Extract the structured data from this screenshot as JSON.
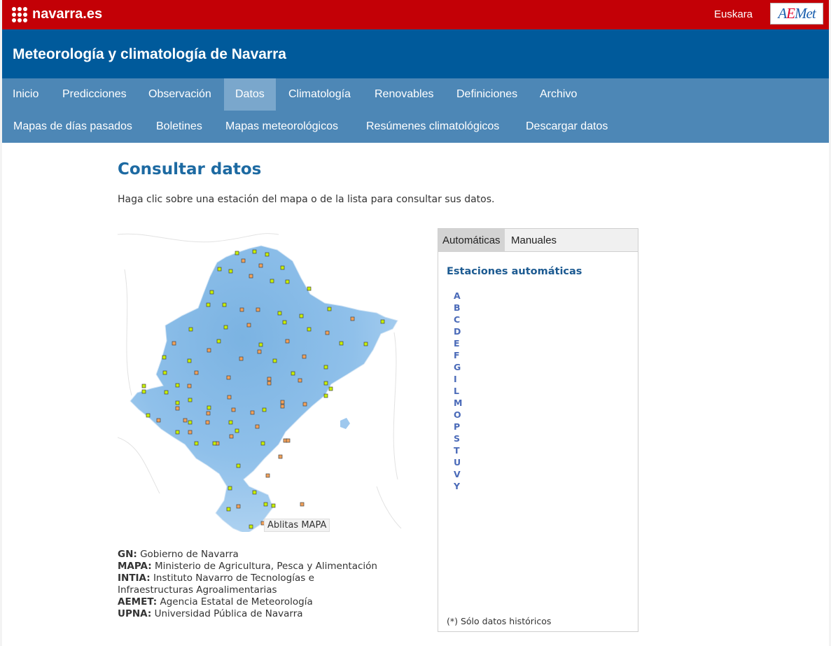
{
  "header": {
    "brand": "navarra.es",
    "language_link": "Euskara",
    "aemet_logo": "AEMet",
    "site_title": "Meteorología y climatología de Navarra"
  },
  "nav": {
    "primary": [
      "Inicio",
      "Predicciones",
      "Observación",
      "Datos",
      "Climatología",
      "Renovables",
      "Definiciones",
      "Archivo"
    ],
    "primary_active": "Datos",
    "secondary": [
      "Mapas de días pasados",
      "Boletines",
      "Mapas meteorológicos",
      "Resúmenes climatológicos",
      "Descargar datos"
    ]
  },
  "content": {
    "title": "Consultar datos",
    "intro": "Haga clic sobre una estación del mapa o de la lista para consultar sus datos.",
    "map_tooltip": "Ablitas MAPA"
  },
  "legend": [
    {
      "abbr": "GN:",
      "text": "Gobierno de Navarra"
    },
    {
      "abbr": "MAPA:",
      "text": "Ministerio de Agricultura, Pesca y Alimentación"
    },
    {
      "abbr": "INTIA:",
      "text": "Instituto Navarro de Tecnologías e Infraestructuras Agroalimentarias"
    },
    {
      "abbr": "AEMET:",
      "text": "Agencia Estatal de Meteorología"
    },
    {
      "abbr": "UPNA:",
      "text": "Universidad Pública de Navarra"
    }
  ],
  "panel": {
    "tabs": [
      "Automáticas",
      "Manuales"
    ],
    "active_tab": "Automáticas",
    "heading": "Estaciones automáticas",
    "letters": [
      "A",
      "B",
      "C",
      "D",
      "E",
      "F",
      "G",
      "I",
      "L",
      "M",
      "O",
      "P",
      "S",
      "T",
      "U",
      "V",
      "Y"
    ],
    "note": "(*) Sólo datos históricos"
  },
  "colors": {
    "top_red": "#c30006",
    "title_blue": "#005a9b",
    "nav_blue": "#4d87b6",
    "station_green": "#c8f000",
    "station_orange": "#f2a15a"
  }
}
